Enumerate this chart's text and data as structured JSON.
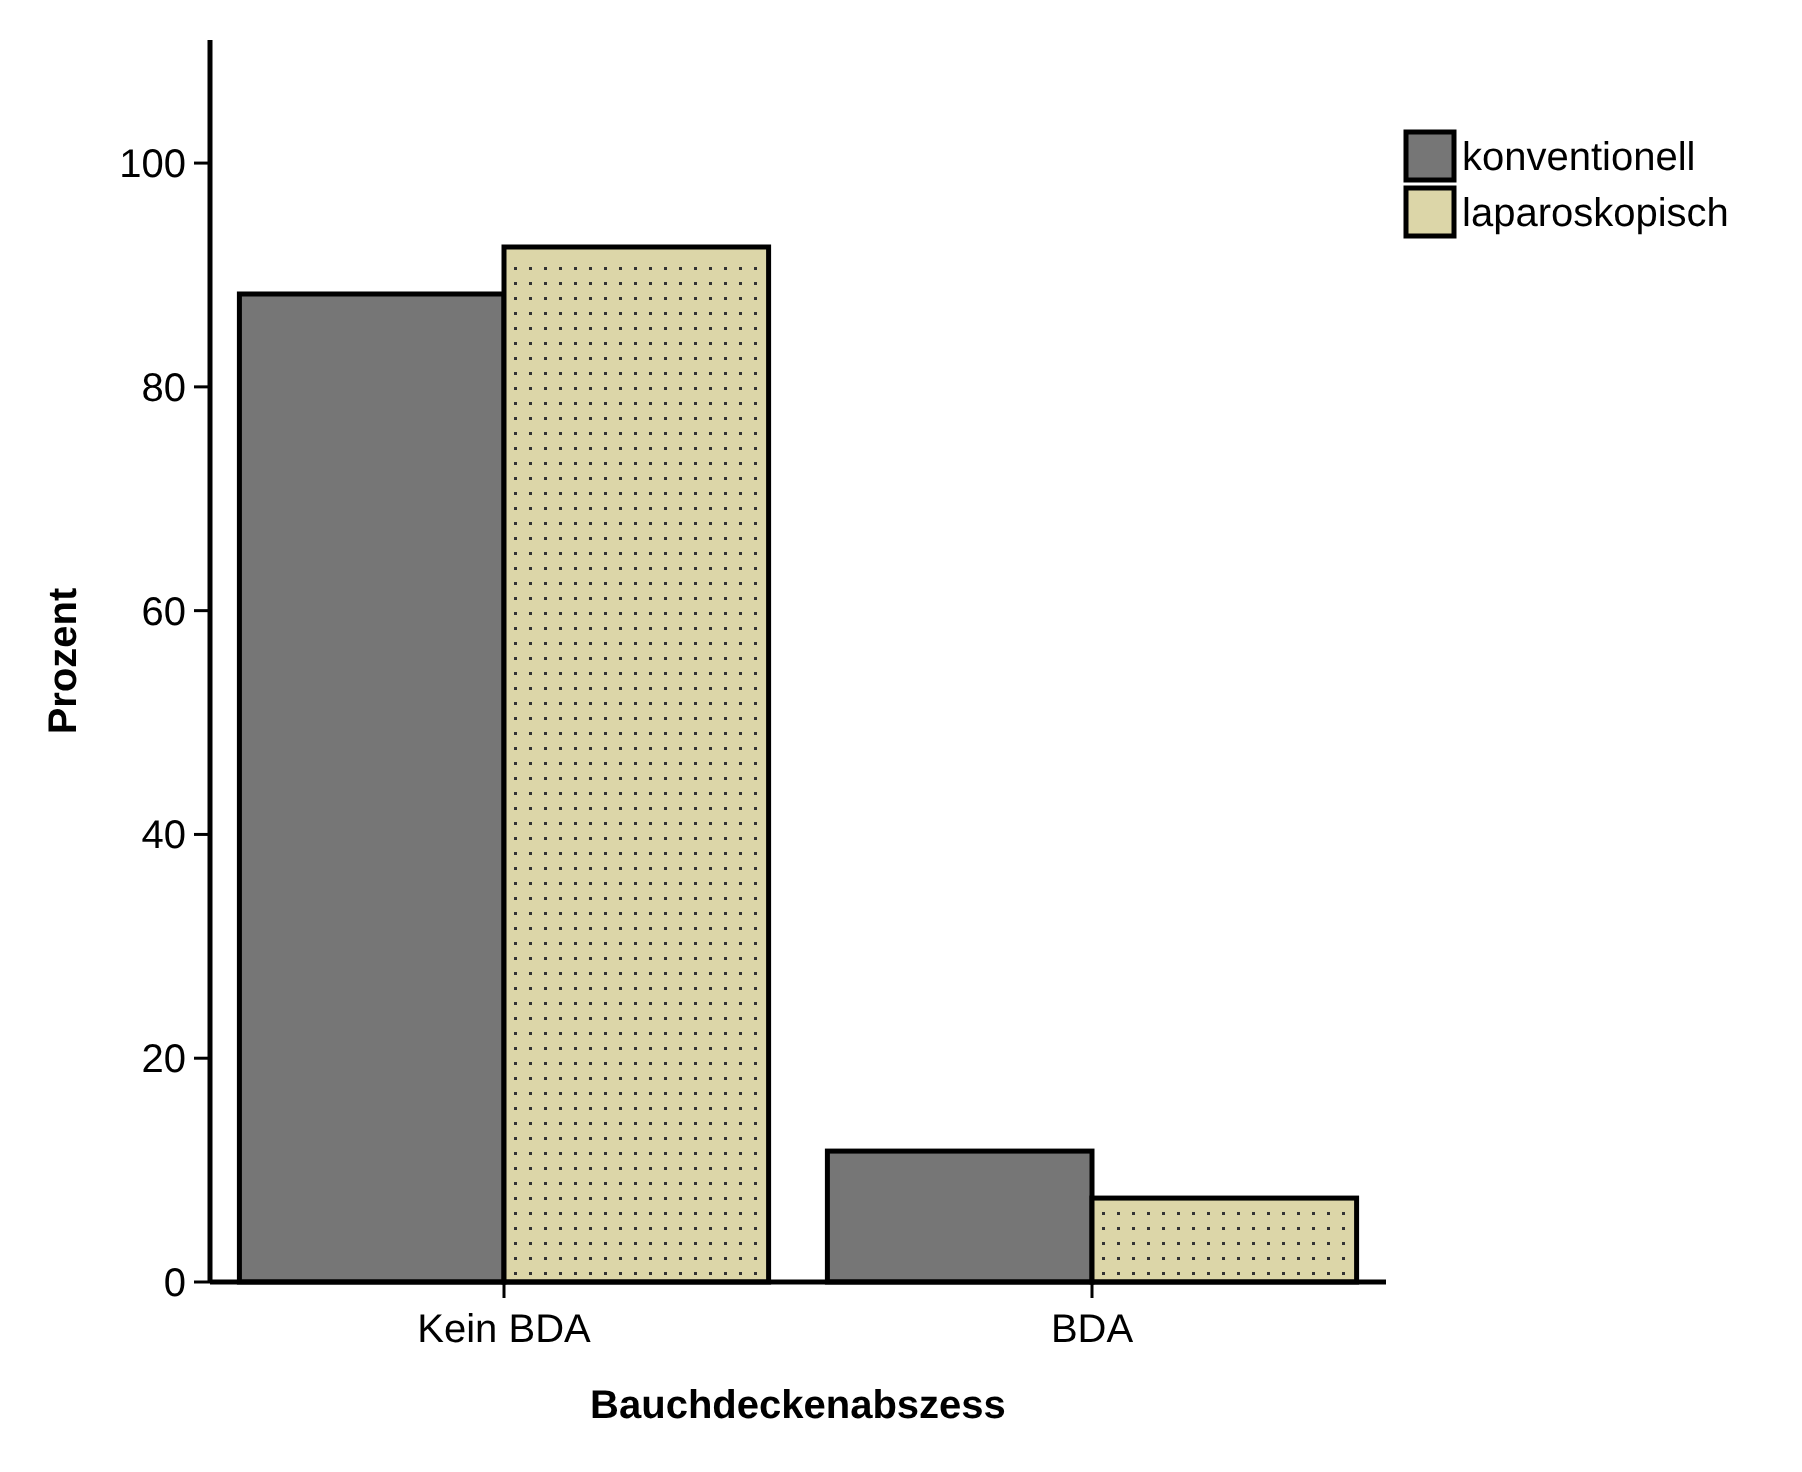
{
  "chart_data": {
    "type": "bar",
    "xlabel": "Bauchdeckenabszess",
    "ylabel": "Prozent",
    "categories": [
      "Kein BDA",
      "BDA"
    ],
    "series": [
      {
        "name": "konventionell",
        "color": "#767676",
        "values": [
          88.3,
          11.7
        ]
      },
      {
        "name": "laparoskopisch",
        "color": "#dcd6a8",
        "values": [
          92.5,
          7.5
        ]
      }
    ],
    "ylim": [
      0,
      111
    ],
    "yticks": [
      0,
      20,
      40,
      60,
      80,
      100
    ],
    "grid": false,
    "legend": "top right"
  }
}
